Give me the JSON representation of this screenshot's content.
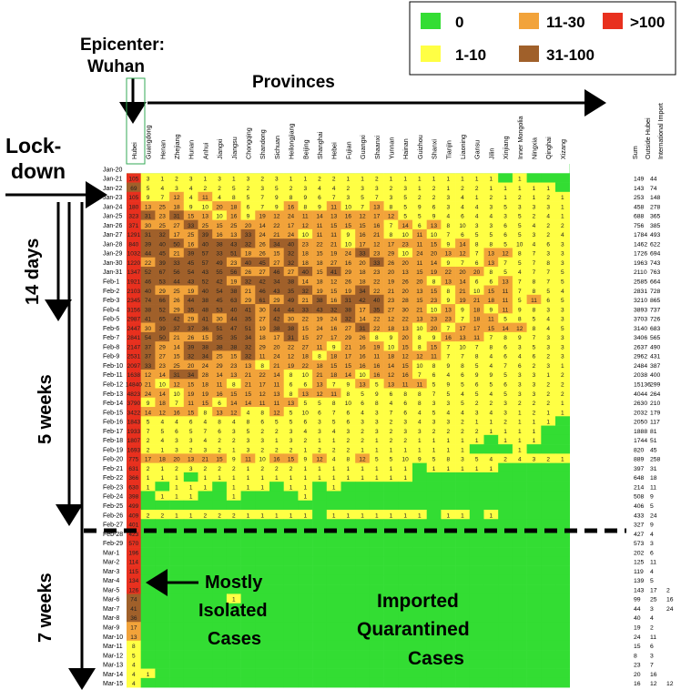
{
  "legend": {
    "items": [
      {
        "label": "0",
        "color": "#33dd33"
      },
      {
        "label": "11-30",
        "color": "#f2a33a"
      },
      {
        "label": ">100",
        "color": "#e8301e"
      },
      {
        "label": "1-10",
        "color": "#ffff44"
      },
      {
        "label": "31-100",
        "color": "#a0602a"
      }
    ]
  },
  "annotations": {
    "epicenter_line1": "Epicenter:",
    "epicenter_line2": "Wuhan",
    "provinces": "Provinces",
    "lockdown_line1": "Lock-",
    "lockdown_line2": "down",
    "days14": "14 days",
    "weeks5": "5 weeks",
    "weeks7": "7 weeks",
    "isolated_line1": "Mostly",
    "isolated_line2": "Isolated",
    "isolated_line3": "Cases",
    "imported_line1": "Imported",
    "imported_line2": "Quarantined",
    "imported_line3": "Cases"
  },
  "chart_data": {
    "type": "heatmap",
    "columns": [
      "Hubei",
      "Guangdong",
      "Henan",
      "Zhejiang",
      "Hunan",
      "Anhui",
      "Jiangxi",
      "Jiangsu",
      "Chongqing",
      "Shandong",
      "Sichuan",
      "Heilongjiang",
      "Beijing",
      "Shanghai",
      "Hebei",
      "Fujian",
      "Guangxi",
      "Shaanxi",
      "Yunnan",
      "Hainan",
      "Guizhou",
      "Shanxi",
      "Tianjin",
      "Liaoning",
      "Gansu",
      "Jilin",
      "Xinjiang",
      "Inner Mongolia",
      "Ningxia",
      "Qinghai",
      "Xizang"
    ],
    "extra_columns": [
      "Sum",
      "Outside Hubei",
      "International Import"
    ],
    "dates": [
      "Jan-20",
      "Jan-21",
      "Jan-22",
      "Jan-23",
      "Jan-24",
      "Jan-25",
      "Jan-26",
      "Jan-27",
      "Jan-28",
      "Jan-29",
      "Jan-30",
      "Jan-31",
      "Feb-1",
      "Feb-2",
      "Feb-3",
      "Feb-4",
      "Feb-5",
      "Feb-6",
      "Feb-7",
      "Feb-8",
      "Feb-9",
      "Feb-10",
      "Feb-11",
      "Feb-12",
      "Feb-13",
      "Feb-14",
      "Feb-15",
      "Feb-16",
      "Feb-17",
      "Feb-18",
      "Feb-19",
      "Feb-20",
      "Feb-21",
      "Feb-22",
      "Feb-23",
      "Feb-24",
      "Feb-25",
      "Feb-26",
      "Feb-27",
      "Feb-28",
      "Feb-29",
      "Mar-1",
      "Mar-2",
      "Mar-3",
      "Mar-4",
      "Mar-5",
      "Mar-6",
      "Mar-7",
      "Mar-8",
      "Mar-9",
      "Mar-10",
      "Mar-11",
      "Mar-12",
      "Mar-13",
      "Mar-14",
      "Mar-15"
    ],
    "hubei": [
      null,
      105,
      69,
      105,
      180,
      323,
      371,
      1291,
      840,
      1032,
      1220,
      1347,
      1921,
      2103,
      2345,
      3156,
      2987,
      2447,
      2841,
      2147,
      2531,
      2097,
      1638,
      14840,
      4823,
      3790,
      3422,
      1843,
      1933,
      1807,
      1693,
      775,
      631,
      366,
      630,
      398,
      499,
      409,
      401,
      423,
      570,
      196,
      114,
      115,
      134,
      126,
      74,
      41,
      36,
      17,
      13,
      8,
      5,
      4,
      4,
      4
    ],
    "sum": [
      null,
      149,
      143,
      253,
      458,
      688,
      756,
      1784,
      1462,
      1726,
      1963,
      2110,
      2585,
      2831,
      3210,
      3893,
      3703,
      3140,
      3406,
      2637,
      2962,
      2484,
      2038,
      15136,
      4044,
      2630,
      2032,
      2050,
      1888,
      1744,
      820,
      889,
      397,
      648,
      214,
      508,
      406,
      433,
      327,
      427,
      573,
      202,
      125,
      119,
      139,
      143,
      99,
      44,
      40,
      19,
      24,
      15,
      8,
      23,
      20,
      16
    ],
    "outside": [
      null,
      44,
      74,
      148,
      278,
      365,
      385,
      493,
      622,
      694,
      743,
      763,
      664,
      728,
      865,
      737,
      726,
      683,
      565,
      490,
      431,
      387,
      400,
      299,
      264,
      210,
      179,
      117,
      81,
      51,
      45,
      258,
      31,
      18,
      11,
      9,
      5,
      24,
      9,
      4,
      3,
      6,
      11,
      4,
      5,
      17,
      25,
      3,
      4,
      2,
      11,
      6,
      3,
      7,
      16,
      12
    ],
    "intl": [
      null,
      null,
      null,
      null,
      null,
      null,
      null,
      null,
      null,
      null,
      null,
      null,
      null,
      null,
      null,
      null,
      null,
      null,
      null,
      null,
      null,
      null,
      null,
      null,
      null,
      null,
      null,
      null,
      null,
      null,
      null,
      null,
      null,
      null,
      null,
      null,
      null,
      null,
      null,
      null,
      null,
      null,
      null,
      null,
      null,
      2,
      16,
      24,
      null,
      null,
      null,
      null,
      null,
      null,
      null,
      12
    ]
  }
}
